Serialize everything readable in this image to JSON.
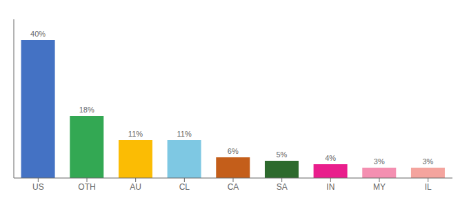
{
  "chart_data": {
    "type": "bar",
    "categories": [
      "US",
      "OTH",
      "AU",
      "CL",
      "CA",
      "SA",
      "IN",
      "MY",
      "IL"
    ],
    "values": [
      40,
      18,
      11,
      11,
      6,
      5,
      4,
      3,
      3
    ],
    "value_labels": [
      "40%",
      "18%",
      "11%",
      "11%",
      "6%",
      "5%",
      "4%",
      "3%",
      "3%"
    ],
    "data_labels": true,
    "colors": [
      "#4472c4",
      "#33a853",
      "#fbbc04",
      "#7ec8e3",
      "#c45e1a",
      "#2d6a2d",
      "#e91e8c",
      "#f48fb1",
      "#f4a49e"
    ],
    "ylim": [
      0,
      46
    ],
    "tick_labels": "x",
    "grid": false
  }
}
